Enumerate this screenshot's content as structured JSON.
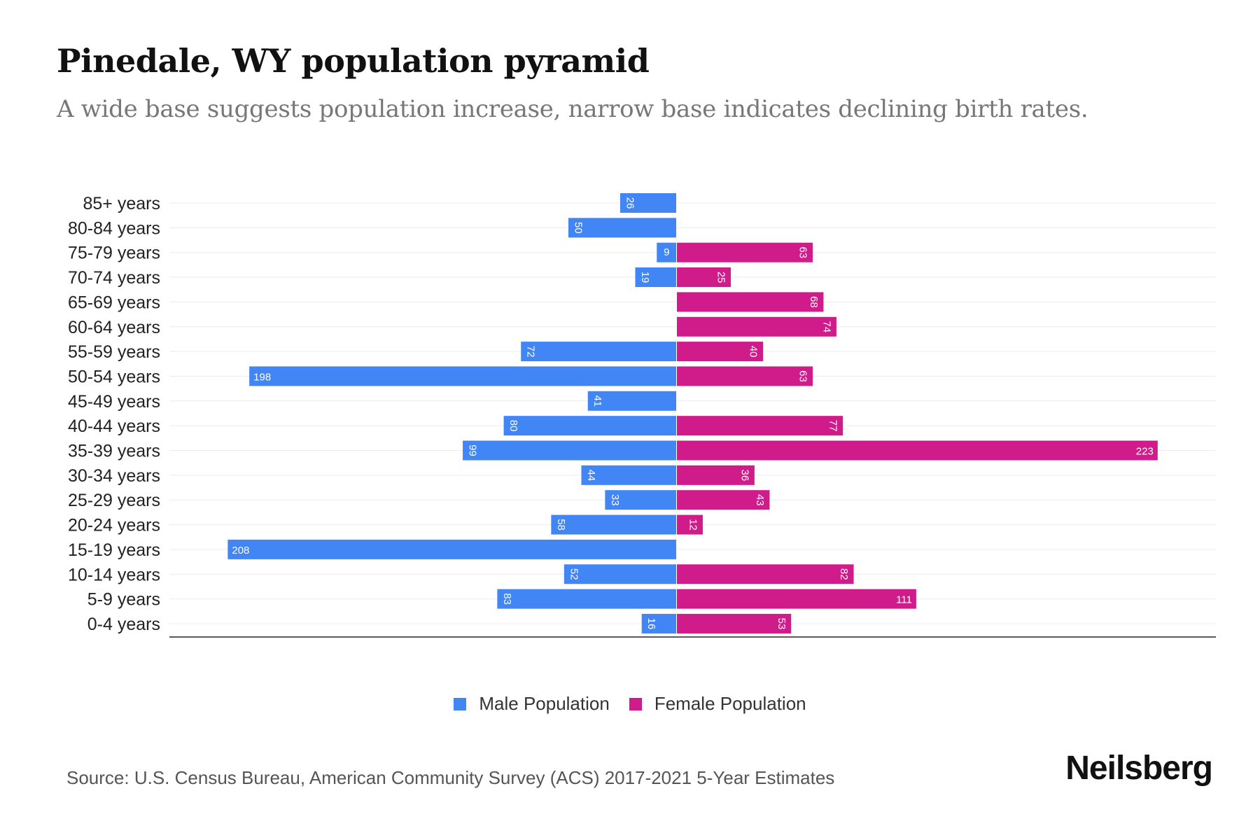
{
  "title": "Pinedale, WY population pyramid",
  "subtitle": "A wide base suggests population increase, narrow base indicates declining birth rates.",
  "source": "Source: U.S. Census Bureau, American Community Survey (ACS) 2017-2021 5-Year Estimates",
  "logo": "Neilsberg",
  "chart_data": {
    "type": "bar",
    "orientation": "horizontal-pyramid",
    "title": "Pinedale, WY population pyramid",
    "categories": [
      "85+ years",
      "80-84 years",
      "75-79 years",
      "70-74 years",
      "65-69 years",
      "60-64 years",
      "55-59 years",
      "50-54 years",
      "45-49 years",
      "40-44 years",
      "35-39 years",
      "30-34 years",
      "25-29 years",
      "20-24 years",
      "15-19 years",
      "10-14 years",
      "5-9 years",
      "0-4 years"
    ],
    "series": [
      {
        "name": "Male Population",
        "color": "#4285f4",
        "values": [
          26,
          50,
          9,
          19,
          0,
          0,
          72,
          198,
          41,
          80,
          99,
          44,
          33,
          58,
          208,
          52,
          83,
          16
        ]
      },
      {
        "name": "Female Population",
        "color": "#d01c8b",
        "values": [
          0,
          0,
          63,
          25,
          68,
          74,
          40,
          63,
          0,
          77,
          223,
          36,
          43,
          12,
          0,
          82,
          111,
          53
        ]
      }
    ],
    "legend_position": "bottom",
    "grid": true
  }
}
